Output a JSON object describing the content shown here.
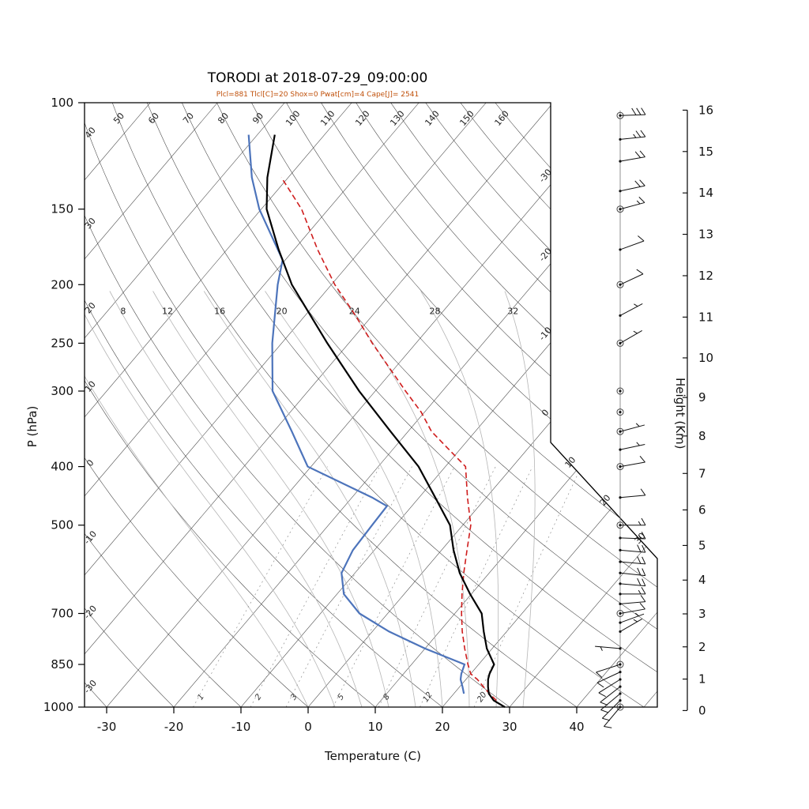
{
  "title": "TORODI at 2018-07-29_09:00:00",
  "params_line": "Plcl=881 Tlcl[C]=20 Shox=0 Pwat[cm]=4 Cape[J]= 2541",
  "colors": {
    "params_text": "#c0500a",
    "temperature": "#000000",
    "dewpoint": "#4d74bb",
    "parcel": "#cf1d1d",
    "grid": "#3f3f3f",
    "moist_adiabat": "#b5b5b5",
    "mixing_ratio": "#909090",
    "border": "#000000",
    "wind": "#111111",
    "axis_text": "#111111"
  },
  "axes": {
    "x_label": "Temperature (C)",
    "y_label": "P (hPa)",
    "right_label": "Height (Km)",
    "pressure_ticks": [
      100,
      150,
      200,
      250,
      300,
      400,
      500,
      700,
      850,
      1000
    ],
    "temp_ticks": [
      -30,
      -20,
      -10,
      0,
      10,
      20,
      30,
      40
    ],
    "height_ticks": [
      0,
      1,
      2,
      3,
      4,
      5,
      6,
      7,
      8,
      9,
      10,
      11,
      12,
      13,
      14,
      15,
      16
    ]
  },
  "grid": {
    "isotherm_min": -120,
    "isotherm_max": 50,
    "isotherm_step": 10,
    "isotherm_edge_labels_vertical": [
      0,
      -10,
      -20,
      -30
    ],
    "isotherm_edge_labels_diagonal": [
      10,
      20,
      30
    ],
    "dry_adiabats_top_labels": [
      50,
      60,
      70,
      80,
      90,
      100,
      110,
      120,
      130,
      140,
      150,
      160
    ],
    "dry_adiabats_left_labels": [
      40,
      30,
      20,
      10,
      0,
      -10,
      -20,
      -30
    ],
    "moist_adiabats": [
      0,
      4,
      8,
      12,
      16,
      20,
      24,
      28,
      32
    ],
    "moist_adiabat_labels": [
      8,
      12,
      16,
      20,
      24,
      28,
      32
    ],
    "mixing_ratio_lines": [
      1,
      2,
      3,
      5,
      8,
      12,
      20
    ]
  },
  "chart_data": {
    "type": "skewt_log_p_sounding",
    "station": "TORODI",
    "datetime": "2018-07-29_09:00:00",
    "indices": {
      "Plcl_hPa": 881,
      "Tlcl_C": 20,
      "Showalter": 0,
      "Pwat_cm": 4,
      "Cape_J": 2541
    },
    "pressure_range_hPa": [
      100,
      1000
    ],
    "temp_axis_range_C": [
      -30,
      40
    ],
    "height_axis_range_km": [
      0,
      16
    ],
    "temperature_profile": [
      [
        1000,
        29.3
      ],
      [
        975,
        26.8
      ],
      [
        950,
        25.2
      ],
      [
        925,
        24.2
      ],
      [
        900,
        23.3
      ],
      [
        881,
        22.8
      ],
      [
        850,
        22.3
      ],
      [
        800,
        19.2
      ],
      [
        750,
        16.6
      ],
      [
        700,
        14.0
      ],
      [
        650,
        9.8
      ],
      [
        600,
        5.6
      ],
      [
        550,
        1.8
      ],
      [
        500,
        -1.9
      ],
      [
        450,
        -7.6
      ],
      [
        400,
        -14.0
      ],
      [
        350,
        -22.6
      ],
      [
        300,
        -32.4
      ],
      [
        250,
        -43.2
      ],
      [
        200,
        -55.9
      ],
      [
        175,
        -62.3
      ],
      [
        150,
        -69.2
      ],
      [
        133,
        -73.1
      ],
      [
        113,
        -77.4
      ]
    ],
    "dewpoint_profile": [
      [
        950,
        21.5
      ],
      [
        925,
        20.4
      ],
      [
        900,
        19.2
      ],
      [
        881,
        18.6
      ],
      [
        850,
        17.9
      ],
      [
        800,
        10.0
      ],
      [
        750,
        2.5
      ],
      [
        700,
        -4.2
      ],
      [
        650,
        -9.0
      ],
      [
        600,
        -12.0
      ],
      [
        550,
        -13.2
      ],
      [
        500,
        -13.5
      ],
      [
        465,
        -13.7
      ],
      [
        450,
        -17.0
      ],
      [
        400,
        -30.5
      ],
      [
        350,
        -37.3
      ],
      [
        300,
        -45.3
      ],
      [
        250,
        -51.4
      ],
      [
        200,
        -58.0
      ],
      [
        182,
        -60.4
      ],
      [
        150,
        -70.3
      ],
      [
        133,
        -75.4
      ],
      [
        113,
        -81.3
      ]
    ],
    "parcel_profile": [
      [
        975,
        27.2
      ],
      [
        950,
        25.3
      ],
      [
        925,
        23.5
      ],
      [
        900,
        21.7
      ],
      [
        881,
        20.0
      ],
      [
        850,
        18.4
      ],
      [
        800,
        15.9
      ],
      [
        750,
        13.4
      ],
      [
        700,
        11.0
      ],
      [
        650,
        8.6
      ],
      [
        600,
        6.2
      ],
      [
        550,
        3.8
      ],
      [
        500,
        1.2
      ],
      [
        450,
        -2.8
      ],
      [
        400,
        -7.0
      ],
      [
        350,
        -16.5
      ],
      [
        325,
        -20.5
      ],
      [
        300,
        -25.5
      ],
      [
        250,
        -36.5
      ],
      [
        225,
        -42.5
      ],
      [
        200,
        -49.5
      ],
      [
        175,
        -56.5
      ],
      [
        150,
        -64.0
      ],
      [
        133,
        -71.0
      ]
    ],
    "winds": [
      [
        1000,
        220,
        10
      ],
      [
        975,
        225,
        12
      ],
      [
        950,
        230,
        12
      ],
      [
        925,
        232,
        12
      ],
      [
        900,
        238,
        10
      ],
      [
        875,
        245,
        8
      ],
      [
        850,
        252,
        8
      ],
      [
        800,
        275,
        5
      ],
      [
        750,
        60,
        5
      ],
      [
        725,
        70,
        6
      ],
      [
        700,
        80,
        10
      ],
      [
        675,
        85,
        12
      ],
      [
        650,
        90,
        15
      ],
      [
        625,
        95,
        18
      ],
      [
        600,
        96,
        20
      ],
      [
        575,
        95,
        20
      ],
      [
        550,
        95,
        18
      ],
      [
        525,
        92,
        16
      ],
      [
        500,
        90,
        15
      ],
      [
        450,
        85,
        10
      ],
      [
        400,
        80,
        8
      ],
      [
        375,
        78,
        4
      ],
      [
        350,
        75,
        3
      ],
      [
        325,
        72,
        2
      ],
      [
        300,
        70,
        2
      ],
      [
        250,
        60,
        3
      ],
      [
        225,
        62,
        5
      ],
      [
        200,
        65,
        8
      ],
      [
        175,
        70,
        12
      ],
      [
        150,
        75,
        15
      ],
      [
        140,
        78,
        18
      ],
      [
        125,
        80,
        22
      ],
      [
        115,
        84,
        25
      ],
      [
        105,
        88,
        28
      ]
    ],
    "wind_circle_levels": [
      1000,
      850,
      700,
      500,
      400,
      300,
      250,
      200,
      150,
      105
    ]
  }
}
